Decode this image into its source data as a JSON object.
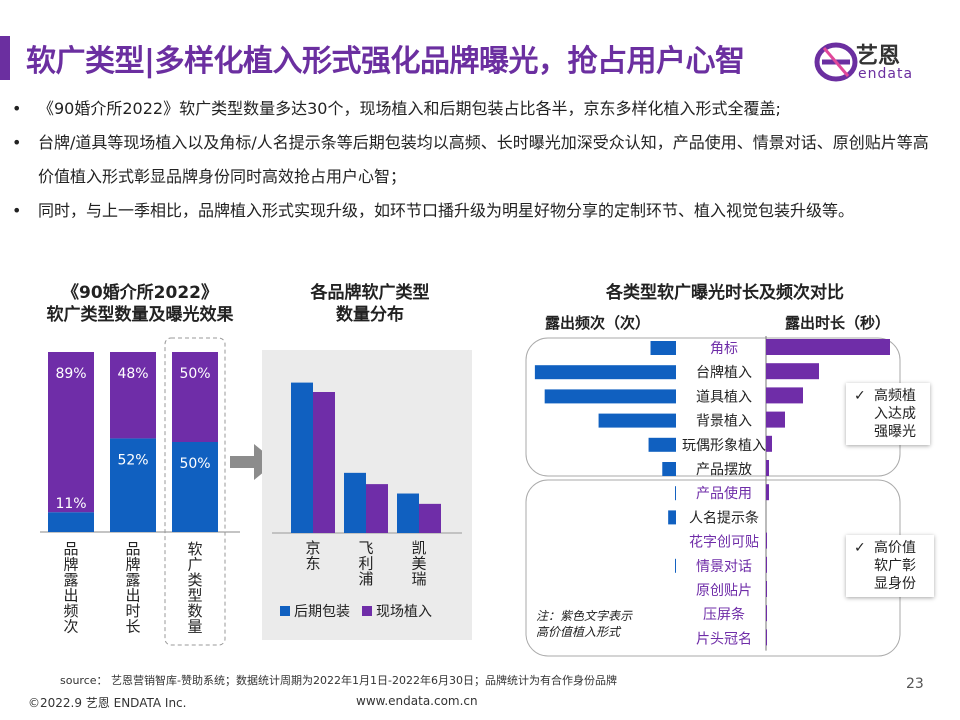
{
  "header": {
    "title": "软广类型|多样化植入形式强化品牌曝光，抢占用户心智",
    "logo_text": "艺恩",
    "logo_sub": "endata"
  },
  "bullets": [
    "《90婚介所2022》软广类型数量多达30个，现场植入和后期包装占比各半，京东多样化植入形式全覆盖;",
    "台牌/道具等现场植入以及角标/人名提示条等后期包装均以高频、长时曝光加深受众认知，产品使用、情景对话、原创贴片等高价值植入形式彰显品牌身份同时高效抢占用户心智；",
    "同时，与上一季相比，品牌植入形式实现升级，如环节口播升级为明星好物分享的定制环节、植入视觉包装升级等。"
  ],
  "chart_data": [
    {
      "type": "bar",
      "title": "《90婚介所2022》\n软广类型数量及曝光效果",
      "categories": [
        "品牌露出频次",
        "品牌露出时长",
        "软广类型数量"
      ],
      "series": [
        {
          "name": "后期包装",
          "values": [
            11,
            52,
            50
          ],
          "labels": [
            "11%",
            "52%",
            "50%"
          ]
        },
        {
          "name": "现场植入",
          "values": [
            89,
            48,
            50
          ],
          "labels": [
            "89%",
            "48%",
            "50%"
          ]
        }
      ],
      "stacked": true,
      "ylim": [
        0,
        100
      ]
    },
    {
      "type": "bar",
      "title": "各品牌软广类型\n数量分布",
      "categories": [
        "京东",
        "飞利浦",
        "凯美瑞"
      ],
      "series": [
        {
          "name": "后期包装",
          "values": [
            16,
            6.4,
            4.2
          ]
        },
        {
          "name": "现场植入",
          "values": [
            15,
            5.2,
            3.1
          ]
        }
      ],
      "legend": "bottom"
    },
    {
      "type": "bar",
      "title": "各类型软广曝光时长及频次对比",
      "left_label": "露出频次（次）",
      "right_label": "露出时长（秒）",
      "categories": [
        "角标",
        "台牌植入",
        "道具植入",
        "背景植入",
        "玩偶形象植入",
        "产品摆放",
        "产品使用",
        "人名提示条",
        "花字创可贴",
        "情景对话",
        "原创贴片",
        "压屏条",
        "片头冠名"
      ],
      "high_value": [
        true,
        false,
        false,
        false,
        false,
        false,
        true,
        false,
        true,
        true,
        true,
        true,
        true
      ],
      "frequency": [
        26,
        144,
        134,
        79,
        28,
        14,
        1,
        8,
        0,
        1,
        0,
        0,
        0
      ],
      "duration": [
        124,
        53,
        37,
        19,
        6,
        3,
        3,
        0,
        1,
        1,
        1,
        1,
        1
      ]
    }
  ],
  "callouts": {
    "c1": "高频植入达成强曝光",
    "c2": "高价值软广彰显身份",
    "check": "✓"
  },
  "note": "注：紫色文字表示\n高价值植入形式",
  "colors": {
    "blue": "#1060c0",
    "purple": "#6f2da8",
    "gray_bg": "#ebebeb"
  },
  "footer": {
    "source": "source： 艺恩营销智库-赞助系统；数据统计周期为2022年1月1日-2022年6月30日；品牌统计为有合作身份品牌",
    "copyright": "©2022.9 艺恩 ENDATA Inc.",
    "url": "www.endata.com.cn",
    "page": "23"
  }
}
